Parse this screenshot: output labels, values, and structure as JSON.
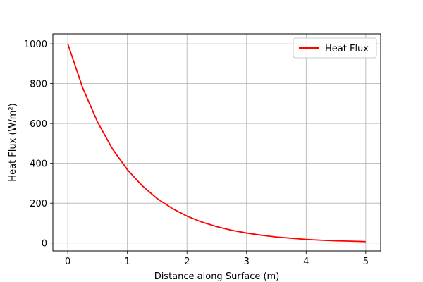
{
  "chart_data": {
    "type": "line",
    "title": "",
    "xlabel": "Distance along Surface (m)",
    "ylabel": "Heat Flux (W/m²)",
    "xlim": [
      -0.25,
      5.25
    ],
    "ylim": [
      -40,
      1050
    ],
    "xticks": [
      0,
      1,
      2,
      3,
      4,
      5
    ],
    "yticks": [
      0,
      200,
      400,
      600,
      800,
      1000
    ],
    "xtick_labels": [
      "0",
      "1",
      "2",
      "3",
      "4",
      "5"
    ],
    "ytick_labels": [
      "0",
      "200",
      "400",
      "600",
      "800",
      "1000"
    ],
    "grid": true,
    "legend_position": "top-right",
    "series": [
      {
        "name": "Heat Flux",
        "color": "#ff0000",
        "x": [
          0,
          0.25,
          0.5,
          0.75,
          1,
          1.25,
          1.5,
          1.75,
          2,
          2.25,
          2.5,
          2.75,
          3,
          3.25,
          3.5,
          3.75,
          4,
          4.25,
          4.5,
          4.75,
          5
        ],
        "y": [
          1000,
          779,
          607,
          472,
          368,
          287,
          223,
          174,
          135,
          105,
          82,
          64,
          50,
          39,
          30,
          24,
          18,
          14,
          11,
          9,
          7
        ]
      }
    ]
  }
}
